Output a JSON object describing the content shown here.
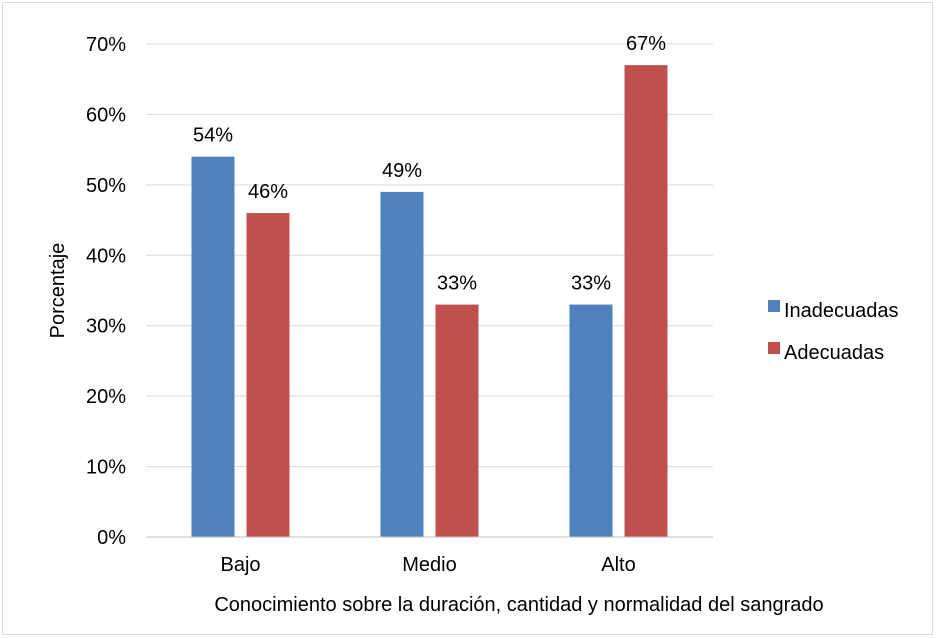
{
  "chart_data": {
    "type": "bar",
    "categories": [
      "Bajo",
      "Medio",
      "Alto"
    ],
    "series": [
      {
        "name": "Inadecuadas",
        "values": [
          54,
          49,
          33
        ],
        "labels": [
          "54%",
          "49%",
          "33%"
        ],
        "color": "#4f81bd"
      },
      {
        "name": "Adecuadas",
        "values": [
          46,
          33,
          67
        ],
        "labels": [
          "46%",
          "33%",
          "67%"
        ],
        "color": "#c0504d"
      }
    ],
    "yticks": [
      "0%",
      "10%",
      "20%",
      "30%",
      "40%",
      "50%",
      "60%",
      "70%"
    ],
    "ylim": [
      0,
      70
    ],
    "xlabel": "Conocimiento sobre la duración, cantidad y normalidad del sangrado",
    "ylabel": "Porcentaje",
    "grid": true,
    "legend": "right"
  }
}
